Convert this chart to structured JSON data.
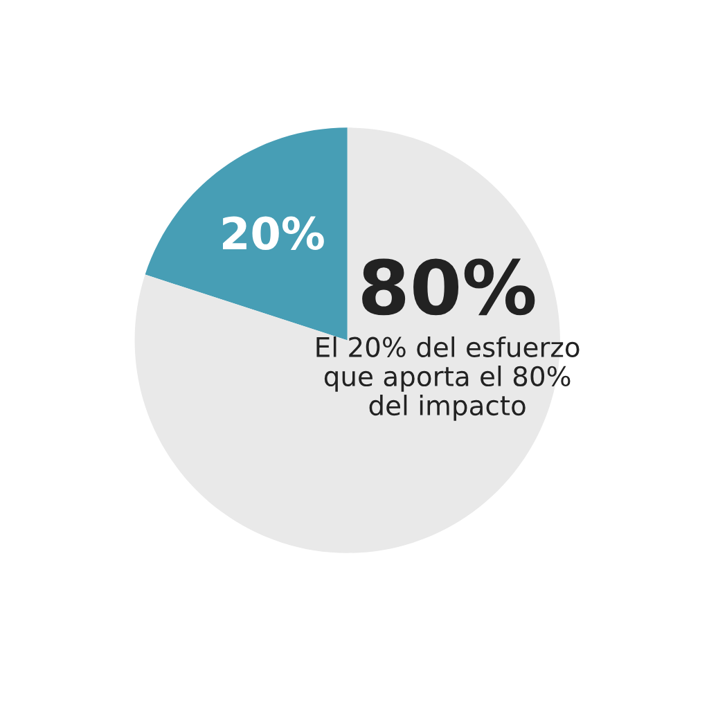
{
  "chart_data": {
    "type": "pie",
    "categories": [
      null,
      null
    ],
    "values": [
      20,
      80
    ],
    "colors": [
      "#479eb5",
      "#e9e9e9"
    ],
    "value_labels": [
      "20%",
      "80%"
    ],
    "annotations": [
      "El 20% del esfuerzo que aporta el 80% del impacto"
    ],
    "legend": false
  }
}
